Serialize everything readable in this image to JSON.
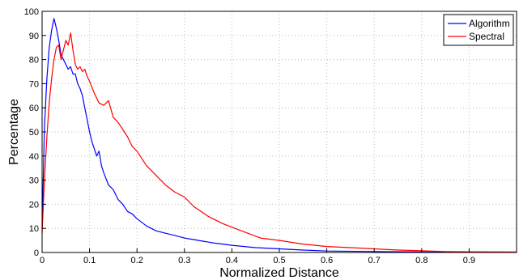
{
  "chart_data": {
    "type": "line",
    "xlabel": "Normalized Distance",
    "ylabel": "Percentage",
    "xlim": [
      0,
      1
    ],
    "ylim": [
      0,
      100
    ],
    "x_ticks": [
      "0",
      "0.1",
      "0.2",
      "0.3",
      "0.4",
      "0.5",
      "0.6",
      "0.7",
      "0.8",
      "0.9"
    ],
    "y_ticks": [
      "0",
      "10",
      "20",
      "30",
      "40",
      "50",
      "60",
      "70",
      "80",
      "90",
      "100"
    ],
    "grid": true,
    "legend_position": "top-right",
    "series": [
      {
        "name": "Algorithm",
        "color": "#0000ff",
        "x": [
          0,
          0.005,
          0.01,
          0.015,
          0.02,
          0.025,
          0.03,
          0.035,
          0.04,
          0.045,
          0.05,
          0.055,
          0.06,
          0.065,
          0.07,
          0.075,
          0.08,
          0.085,
          0.09,
          0.095,
          0.1,
          0.105,
          0.11,
          0.115,
          0.12,
          0.125,
          0.13,
          0.14,
          0.15,
          0.16,
          0.17,
          0.18,
          0.19,
          0.2,
          0.22,
          0.24,
          0.26,
          0.28,
          0.3,
          0.33,
          0.36,
          0.4,
          0.45,
          0.5,
          0.55,
          0.6,
          0.7,
          0.8,
          0.9,
          1.0
        ],
        "y": [
          10,
          52,
          72,
          85,
          92,
          97,
          93,
          88,
          82,
          80,
          78,
          76,
          77,
          74,
          74,
          70,
          68,
          65,
          60,
          55,
          50,
          46,
          43,
          40,
          42,
          36,
          33,
          28,
          26,
          22,
          20,
          17,
          16,
          14,
          11,
          9,
          8,
          7,
          6,
          5,
          4,
          3,
          2,
          1.5,
          1,
          0.6,
          0.4,
          0.2,
          0.1,
          0.1
        ]
      },
      {
        "name": "Spectral",
        "color": "#ff0000",
        "x": [
          0,
          0.005,
          0.01,
          0.015,
          0.02,
          0.025,
          0.03,
          0.035,
          0.04,
          0.045,
          0.05,
          0.055,
          0.06,
          0.065,
          0.07,
          0.075,
          0.08,
          0.085,
          0.09,
          0.095,
          0.1,
          0.11,
          0.12,
          0.13,
          0.14,
          0.15,
          0.16,
          0.17,
          0.18,
          0.19,
          0.2,
          0.22,
          0.24,
          0.26,
          0.28,
          0.3,
          0.32,
          0.35,
          0.38,
          0.42,
          0.46,
          0.5,
          0.55,
          0.6,
          0.65,
          0.7,
          0.75,
          0.8,
          0.85,
          0.9,
          1.0
        ],
        "y": [
          8,
          30,
          48,
          62,
          72,
          80,
          85,
          86,
          80,
          84,
          88,
          86,
          91,
          84,
          78,
          76,
          77,
          75,
          76,
          73,
          71,
          66,
          62,
          61,
          63,
          56,
          54,
          51,
          48,
          44,
          42,
          36,
          32,
          28,
          25,
          23,
          19,
          15,
          12,
          9,
          6,
          5,
          3.5,
          2.5,
          2,
          1.5,
          1,
          0.7,
          0.4,
          0.3,
          0.2
        ]
      }
    ]
  }
}
